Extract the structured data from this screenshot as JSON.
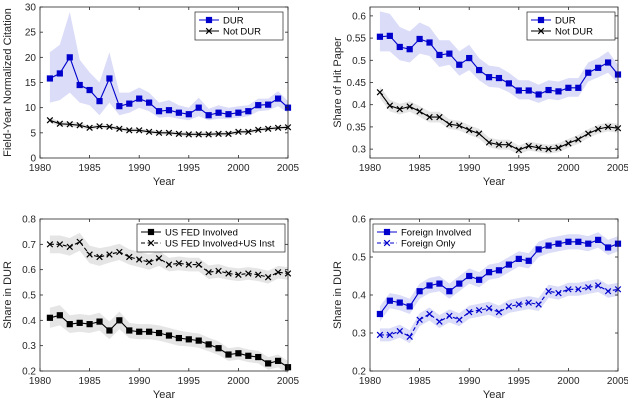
{
  "chart_data": [
    {
      "type": "line",
      "x": [
        1981,
        1982,
        1983,
        1984,
        1985,
        1986,
        1987,
        1988,
        1989,
        1990,
        1991,
        1992,
        1993,
        1994,
        1995,
        1996,
        1997,
        1998,
        1999,
        2000,
        2001,
        2002,
        2003,
        2004,
        2005
      ],
      "xlim": [
        1980,
        2005
      ],
      "xticks": [
        1980,
        1985,
        1990,
        1995,
        2000,
        2005
      ],
      "ylim": [
        0,
        30
      ],
      "yticks": [
        0,
        5,
        10,
        15,
        20,
        25,
        30
      ],
      "xlabel": "Year",
      "ylabel": "Field-Year Normalized Citation",
      "legend_position": "top-right",
      "series": [
        {
          "name": "DUR",
          "color": "#0000cc",
          "marker": "square",
          "line": "solid",
          "values": [
            15.8,
            16.8,
            20.0,
            14.5,
            13.5,
            11.3,
            15.8,
            10.3,
            10.8,
            11.8,
            11.0,
            9.3,
            9.5,
            9.0,
            8.7,
            10.0,
            8.5,
            9.0,
            8.7,
            9.0,
            9.3,
            10.5,
            10.6,
            11.8,
            10.0
          ],
          "band_lower": [
            11.0,
            11.5,
            13.0,
            11.0,
            10.5,
            8.5,
            11.0,
            8.5,
            9.0,
            10.0,
            9.3,
            8.0,
            8.2,
            7.8,
            7.5,
            8.3,
            7.5,
            7.8,
            7.8,
            8.0,
            8.3,
            9.3,
            9.5,
            10.3,
            9.0
          ],
          "band_upper": [
            21.0,
            22.5,
            29.0,
            19.5,
            17.0,
            15.0,
            21.0,
            13.0,
            13.0,
            14.0,
            13.0,
            11.0,
            11.5,
            10.5,
            10.0,
            12.0,
            9.8,
            10.5,
            10.0,
            10.3,
            10.5,
            11.8,
            11.8,
            13.3,
            11.3
          ]
        },
        {
          "name": "Not DUR",
          "color": "#000000",
          "marker": "x",
          "line": "solid",
          "values": [
            7.5,
            6.8,
            6.7,
            6.5,
            6.0,
            6.3,
            6.2,
            5.8,
            5.5,
            5.5,
            5.2,
            5.0,
            5.0,
            4.8,
            4.7,
            4.7,
            4.7,
            4.8,
            4.8,
            5.2,
            5.2,
            5.6,
            5.8,
            6.0,
            6.1
          ],
          "band_lower": [
            7.0,
            6.3,
            6.2,
            6.0,
            5.6,
            5.9,
            5.8,
            5.4,
            5.1,
            5.1,
            4.8,
            4.6,
            4.6,
            4.4,
            4.3,
            4.3,
            4.3,
            4.4,
            4.4,
            4.8,
            4.8,
            5.2,
            5.4,
            5.6,
            5.7
          ],
          "band_upper": [
            8.0,
            7.3,
            7.2,
            7.0,
            6.4,
            6.7,
            6.6,
            6.2,
            5.9,
            5.9,
            5.6,
            5.4,
            5.4,
            5.2,
            5.1,
            5.1,
            5.1,
            5.2,
            5.2,
            5.6,
            5.6,
            6.0,
            6.2,
            6.4,
            6.5
          ]
        }
      ]
    },
    {
      "type": "line",
      "x": [
        1981,
        1982,
        1983,
        1984,
        1985,
        1986,
        1987,
        1988,
        1989,
        1990,
        1991,
        1992,
        1993,
        1994,
        1995,
        1996,
        1997,
        1998,
        1999,
        2000,
        2001,
        2002,
        2003,
        2004,
        2005
      ],
      "xlim": [
        1980,
        2005
      ],
      "xticks": [
        1980,
        1985,
        1990,
        1995,
        2000,
        2005
      ],
      "ylim": [
        0.28,
        0.62
      ],
      "yticks": [
        0.3,
        0.35,
        0.4,
        0.45,
        0.5,
        0.55,
        0.6
      ],
      "xlabel": "Year",
      "ylabel": "Share of Hit Paper",
      "legend_position": "top-right",
      "series": [
        {
          "name": "DUR",
          "color": "#0000cc",
          "marker": "square",
          "line": "solid",
          "values": [
            0.553,
            0.555,
            0.53,
            0.525,
            0.548,
            0.54,
            0.512,
            0.515,
            0.49,
            0.505,
            0.478,
            0.462,
            0.46,
            0.448,
            0.432,
            0.432,
            0.423,
            0.433,
            0.43,
            0.438,
            0.438,
            0.472,
            0.483,
            0.495,
            0.468
          ],
          "band_lower": [
            0.52,
            0.52,
            0.5,
            0.495,
            0.515,
            0.51,
            0.485,
            0.49,
            0.465,
            0.478,
            0.455,
            0.44,
            0.438,
            0.428,
            0.412,
            0.412,
            0.404,
            0.413,
            0.41,
            0.418,
            0.418,
            0.452,
            0.462,
            0.472,
            0.448
          ],
          "band_upper": [
            0.61,
            0.605,
            0.575,
            0.565,
            0.585,
            0.575,
            0.545,
            0.545,
            0.52,
            0.535,
            0.505,
            0.488,
            0.485,
            0.472,
            0.455,
            0.455,
            0.445,
            0.455,
            0.452,
            0.46,
            0.46,
            0.495,
            0.505,
            0.52,
            0.49
          ]
        },
        {
          "name": "Not DUR",
          "color": "#000000",
          "marker": "x",
          "line": "solid",
          "values": [
            0.428,
            0.398,
            0.39,
            0.396,
            0.385,
            0.372,
            0.372,
            0.356,
            0.353,
            0.343,
            0.335,
            0.315,
            0.31,
            0.31,
            0.298,
            0.307,
            0.303,
            0.3,
            0.303,
            0.313,
            0.322,
            0.335,
            0.345,
            0.35,
            0.347
          ],
          "band_lower": [
            0.415,
            0.385,
            0.378,
            0.384,
            0.373,
            0.36,
            0.36,
            0.345,
            0.342,
            0.332,
            0.324,
            0.304,
            0.299,
            0.299,
            0.288,
            0.297,
            0.293,
            0.29,
            0.293,
            0.303,
            0.312,
            0.325,
            0.335,
            0.34,
            0.337
          ],
          "band_upper": [
            0.441,
            0.411,
            0.402,
            0.408,
            0.397,
            0.384,
            0.384,
            0.367,
            0.364,
            0.354,
            0.346,
            0.326,
            0.321,
            0.321,
            0.308,
            0.317,
            0.313,
            0.31,
            0.313,
            0.323,
            0.332,
            0.345,
            0.355,
            0.36,
            0.357
          ]
        }
      ]
    },
    {
      "type": "line",
      "x": [
        1981,
        1982,
        1983,
        1984,
        1985,
        1986,
        1987,
        1988,
        1989,
        1990,
        1991,
        1992,
        1993,
        1994,
        1995,
        1996,
        1997,
        1998,
        1999,
        2000,
        2001,
        2002,
        2003,
        2004,
        2005
      ],
      "xlim": [
        1980,
        2005
      ],
      "xticks": [
        1980,
        1985,
        1990,
        1995,
        2000,
        2005
      ],
      "ylim": [
        0.2,
        0.8
      ],
      "yticks": [
        0.2,
        0.3,
        0.4,
        0.5,
        0.6,
        0.7,
        0.8
      ],
      "xlabel": "Year",
      "ylabel": "Share in DUR",
      "legend_position": "top-right",
      "series": [
        {
          "name": "US FED Involved",
          "color": "#000000",
          "marker": "square",
          "line": "solid",
          "values": [
            0.41,
            0.42,
            0.385,
            0.39,
            0.385,
            0.395,
            0.36,
            0.4,
            0.36,
            0.355,
            0.355,
            0.35,
            0.34,
            0.33,
            0.325,
            0.32,
            0.305,
            0.29,
            0.265,
            0.27,
            0.26,
            0.255,
            0.23,
            0.24,
            0.215
          ],
          "band_lower": [
            0.37,
            0.38,
            0.35,
            0.355,
            0.35,
            0.36,
            0.325,
            0.365,
            0.33,
            0.325,
            0.325,
            0.32,
            0.31,
            0.3,
            0.297,
            0.292,
            0.278,
            0.263,
            0.24,
            0.245,
            0.235,
            0.23,
            0.205,
            0.215,
            0.19
          ],
          "band_upper": [
            0.45,
            0.46,
            0.42,
            0.425,
            0.42,
            0.43,
            0.395,
            0.435,
            0.39,
            0.385,
            0.385,
            0.38,
            0.37,
            0.36,
            0.353,
            0.348,
            0.332,
            0.317,
            0.29,
            0.295,
            0.285,
            0.28,
            0.255,
            0.265,
            0.24
          ]
        },
        {
          "name": "US FED Involved+US Inst",
          "color": "#000000",
          "marker": "x",
          "line": "dashed",
          "values": [
            0.7,
            0.7,
            0.69,
            0.71,
            0.66,
            0.65,
            0.66,
            0.67,
            0.65,
            0.64,
            0.63,
            0.645,
            0.62,
            0.625,
            0.62,
            0.62,
            0.59,
            0.595,
            0.585,
            0.58,
            0.585,
            0.58,
            0.57,
            0.59,
            0.585
          ],
          "band_lower": [
            0.665,
            0.665,
            0.655,
            0.675,
            0.625,
            0.615,
            0.628,
            0.638,
            0.62,
            0.61,
            0.6,
            0.615,
            0.593,
            0.598,
            0.593,
            0.593,
            0.563,
            0.568,
            0.56,
            0.555,
            0.56,
            0.555,
            0.545,
            0.565,
            0.56
          ],
          "band_upper": [
            0.735,
            0.735,
            0.725,
            0.745,
            0.695,
            0.685,
            0.692,
            0.702,
            0.68,
            0.67,
            0.66,
            0.675,
            0.647,
            0.652,
            0.647,
            0.647,
            0.617,
            0.622,
            0.61,
            0.605,
            0.61,
            0.605,
            0.595,
            0.615,
            0.61
          ]
        }
      ]
    },
    {
      "type": "line",
      "x": [
        1981,
        1982,
        1983,
        1984,
        1985,
        1986,
        1987,
        1988,
        1989,
        1990,
        1991,
        1992,
        1993,
        1994,
        1995,
        1996,
        1997,
        1998,
        1999,
        2000,
        2001,
        2002,
        2003,
        2004,
        2005
      ],
      "xlim": [
        1980,
        2005
      ],
      "xticks": [
        1980,
        1985,
        1990,
        1995,
        2000,
        2005
      ],
      "ylim": [
        0.2,
        0.6
      ],
      "yticks": [
        0.2,
        0.3,
        0.4,
        0.5,
        0.6
      ],
      "xlabel": "Year",
      "ylabel": "Share in DUR",
      "legend_position": "top-left",
      "series": [
        {
          "name": "Foreign Involved",
          "color": "#0000cc",
          "marker": "square",
          "line": "solid",
          "values": [
            0.35,
            0.385,
            0.38,
            0.37,
            0.41,
            0.425,
            0.43,
            0.41,
            0.43,
            0.45,
            0.44,
            0.46,
            0.465,
            0.48,
            0.495,
            0.49,
            0.52,
            0.53,
            0.535,
            0.54,
            0.54,
            0.535,
            0.545,
            0.525,
            0.535
          ],
          "band_lower": [
            0.33,
            0.365,
            0.36,
            0.35,
            0.39,
            0.405,
            0.41,
            0.39,
            0.41,
            0.43,
            0.42,
            0.44,
            0.445,
            0.46,
            0.475,
            0.47,
            0.5,
            0.51,
            0.515,
            0.52,
            0.52,
            0.515,
            0.525,
            0.505,
            0.515
          ],
          "band_upper": [
            0.37,
            0.405,
            0.4,
            0.39,
            0.43,
            0.445,
            0.45,
            0.43,
            0.45,
            0.47,
            0.46,
            0.48,
            0.485,
            0.5,
            0.515,
            0.51,
            0.54,
            0.55,
            0.555,
            0.56,
            0.56,
            0.555,
            0.565,
            0.545,
            0.555
          ]
        },
        {
          "name": "Foreign Only",
          "color": "#0000cc",
          "marker": "x",
          "line": "dashed",
          "values": [
            0.295,
            0.295,
            0.305,
            0.29,
            0.335,
            0.35,
            0.33,
            0.345,
            0.335,
            0.355,
            0.36,
            0.365,
            0.355,
            0.37,
            0.375,
            0.38,
            0.375,
            0.41,
            0.405,
            0.415,
            0.415,
            0.42,
            0.425,
            0.41,
            0.415
          ],
          "band_lower": [
            0.278,
            0.278,
            0.288,
            0.273,
            0.318,
            0.333,
            0.313,
            0.328,
            0.318,
            0.338,
            0.343,
            0.348,
            0.338,
            0.353,
            0.358,
            0.363,
            0.358,
            0.393,
            0.388,
            0.398,
            0.398,
            0.403,
            0.408,
            0.393,
            0.398
          ],
          "band_upper": [
            0.312,
            0.312,
            0.322,
            0.307,
            0.352,
            0.367,
            0.347,
            0.362,
            0.352,
            0.372,
            0.377,
            0.382,
            0.372,
            0.387,
            0.392,
            0.397,
            0.392,
            0.427,
            0.422,
            0.432,
            0.432,
            0.437,
            0.442,
            0.427,
            0.432
          ]
        }
      ]
    }
  ]
}
